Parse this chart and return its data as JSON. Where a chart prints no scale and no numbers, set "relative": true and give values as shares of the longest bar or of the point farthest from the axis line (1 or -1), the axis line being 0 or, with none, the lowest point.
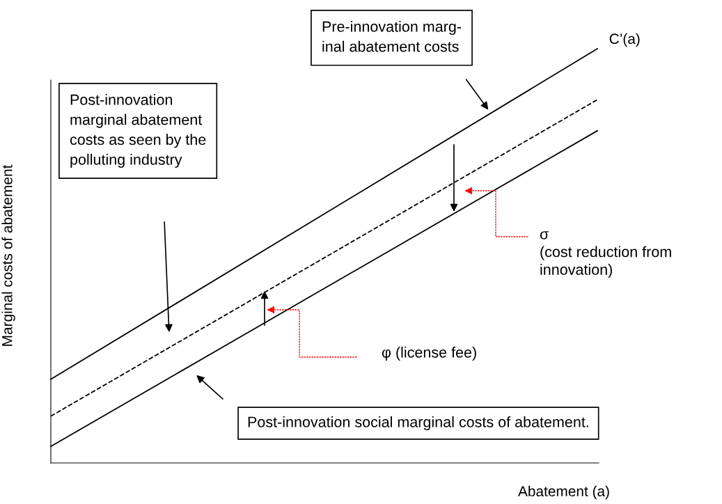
{
  "chart_data": {
    "type": "line",
    "relative": true,
    "xlabel": "Abatement (a)",
    "ylabel": "Marginal costs of abatement",
    "categories": [
      null,
      null
    ],
    "series": [
      {
        "name": "C’(a)",
        "color": "#000000",
        "values": [
          0.202,
          1
        ],
        "line_style": "solid"
      },
      {
        "color": "#000000",
        "values": [
          0.113,
          0.877
        ],
        "line_style": "dashed"
      },
      {
        "color": "#000000",
        "values": [
          0.04,
          0.802
        ],
        "line_style": "solid"
      }
    ],
    "annotations": [
      "Pre-innovation marg-\ninal abatement costs",
      "Post-innovation\nmarginal abatement\ncosts as seen by the\npolluting industry",
      "Post-innovation social marginal costs of abatement.",
      "σ\n(cost reduction from\ninnovation)",
      "φ (license fee)"
    ],
    "legend": false,
    "marker": "none"
  }
}
